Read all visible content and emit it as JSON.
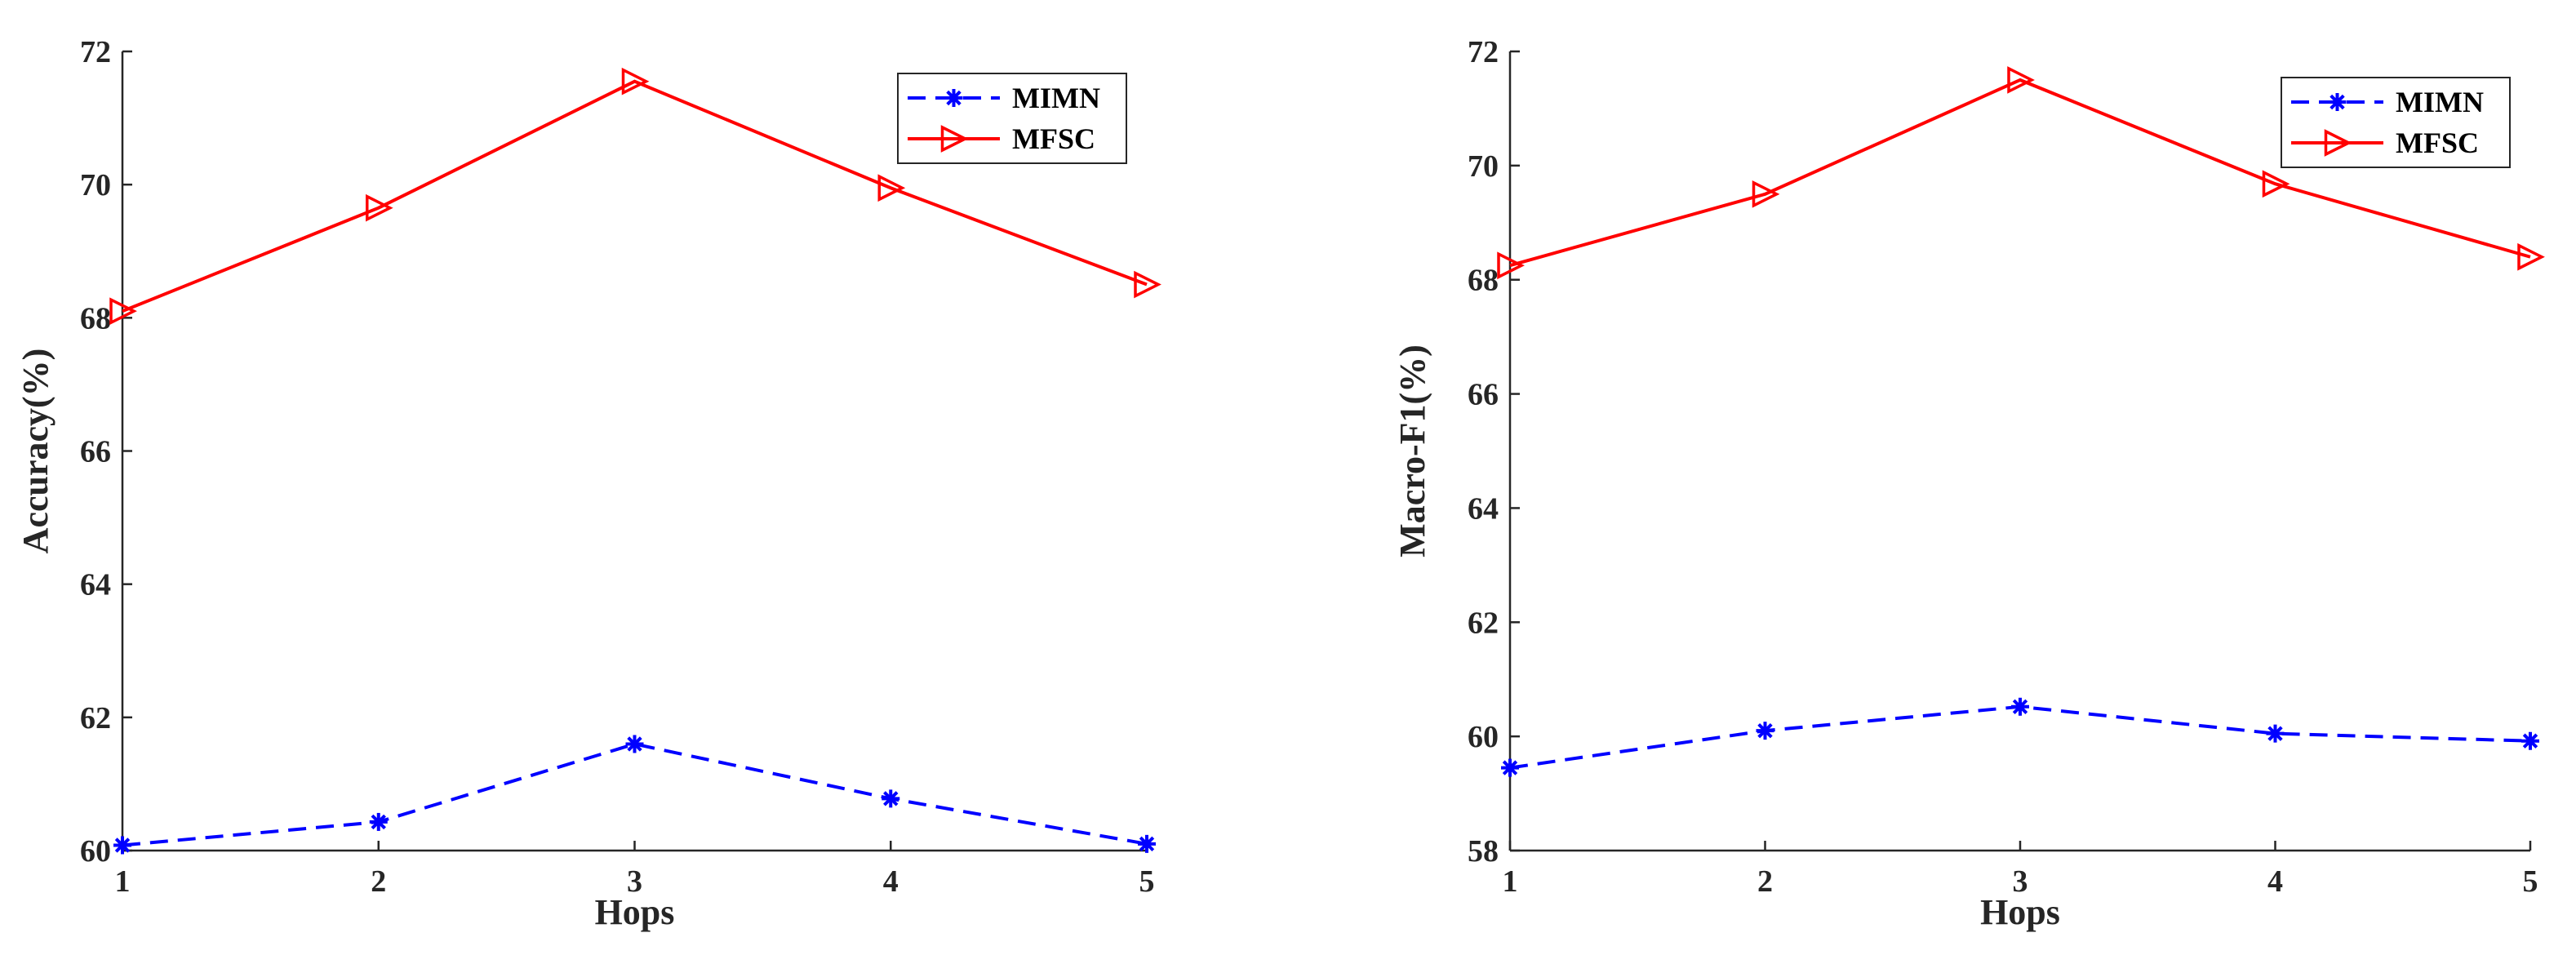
{
  "chart_data": [
    {
      "type": "line",
      "title": "",
      "xlabel": "Hops",
      "ylabel": "Accuracy(%)",
      "x": [
        1,
        2,
        3,
        4,
        5
      ],
      "xticks": [
        "1",
        "2",
        "3",
        "4",
        "5"
      ],
      "yticks": [
        "60",
        "62",
        "64",
        "66",
        "68",
        "70",
        "72"
      ],
      "xlim": [
        1,
        5
      ],
      "ylim": [
        60,
        72
      ],
      "grid": false,
      "legend_position": "top-right",
      "series": [
        {
          "name": "MIMN",
          "values": [
            60.08,
            60.43,
            61.6,
            60.78,
            60.1
          ],
          "color": "#0000ff",
          "line_style": "dashed",
          "marker": "asterisk"
        },
        {
          "name": "MFSC",
          "values": [
            68.1,
            69.65,
            71.55,
            69.95,
            68.5
          ],
          "color": "#ff0000",
          "line_style": "solid",
          "marker": "triangle-right"
        }
      ]
    },
    {
      "type": "line",
      "title": "",
      "xlabel": "Hops",
      "ylabel": "Macro-F1(%)",
      "x": [
        1,
        2,
        3,
        4,
        5
      ],
      "xticks": [
        "1",
        "2",
        "3",
        "4",
        "5"
      ],
      "yticks": [
        "58",
        "60",
        "62",
        "64",
        "66",
        "68",
        "70",
        "72"
      ],
      "xlim": [
        1,
        5
      ],
      "ylim": [
        58,
        72
      ],
      "grid": false,
      "legend_position": "top-right",
      "series": [
        {
          "name": "MIMN",
          "values": [
            59.45,
            60.1,
            60.52,
            60.05,
            59.92
          ],
          "color": "#0000ff",
          "line_style": "dashed",
          "marker": "asterisk"
        },
        {
          "name": "MFSC",
          "values": [
            68.25,
            69.5,
            71.5,
            69.68,
            68.4
          ],
          "color": "#ff0000",
          "line_style": "solid",
          "marker": "triangle-right"
        }
      ]
    }
  ]
}
